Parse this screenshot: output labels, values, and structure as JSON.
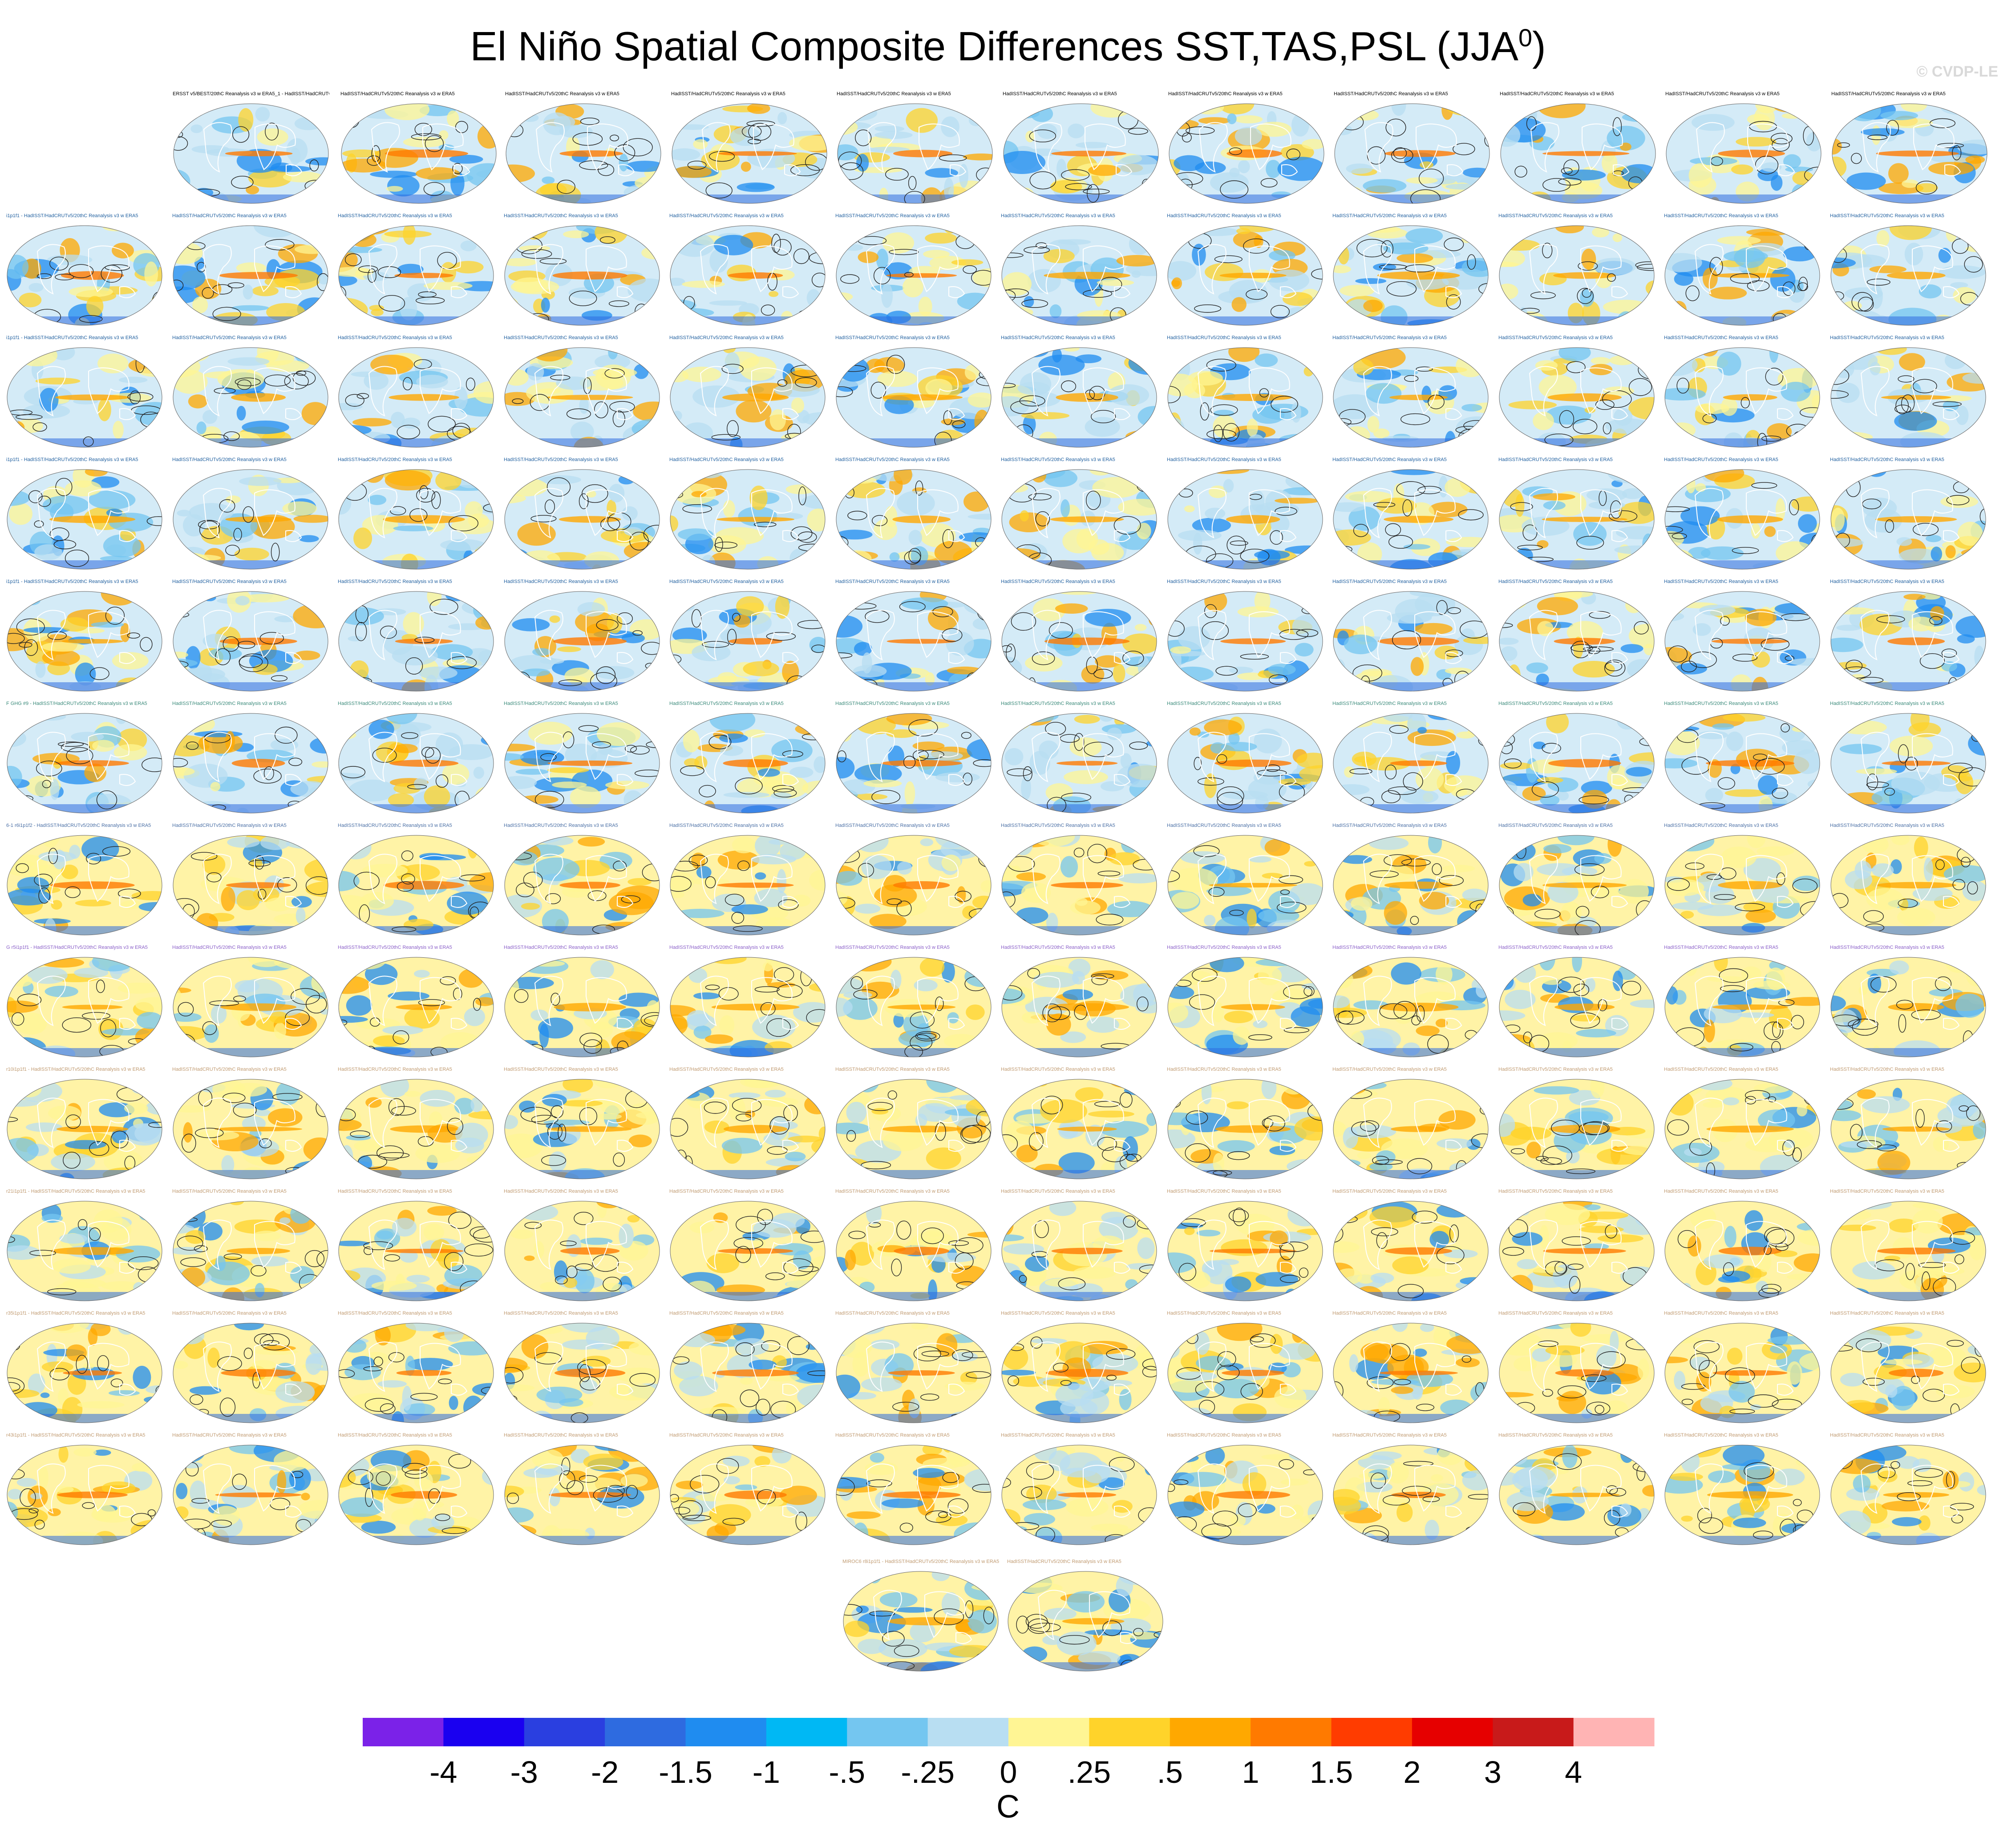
{
  "title": {
    "main": "El Niño Spatial Composite Differences SST,TAS,PSL (JJA",
    "superscript": "0",
    "close": ")"
  },
  "watermark": "© CVDP-LE",
  "chart_data": {
    "type": "heatmap",
    "description_variables": [
      "SST",
      "TAS",
      "PSL"
    ],
    "season": "JJA0",
    "panel_count": 145,
    "panels_per_row": 12,
    "first_panel_label_lines": [
      "ERSST v5/BEST/20thC Reanalysis v3 w ERA5_1 -",
      "HadISST/HadCRUTv5/20thC Reanalysis v3 w ERA5"
    ],
    "panel_label_row_prefixes": [
      "",
      "i1p1f1",
      "i1p1f1",
      "i1p1f1",
      "i1p1f1",
      "F GHG #9",
      "6-1 r6i1p1f2",
      "G r5i1p1f1",
      "r10i1p1f1",
      "r21i1p1f1",
      "r35i1p1f1",
      "r43i1p1f1",
      "MIROC6 r8i1p1f1"
    ],
    "panel_label_text": "HadISST/HadCRUTv5/20thC Reanalysis v3 w ERA5",
    "panel_label_colors": [
      "#000000",
      "#1f5f9f",
      "#1f5f9f",
      "#1f5f9f",
      "#1f5f9f",
      "#3a8a7a",
      "#4a6fa5",
      "#8a5fc8",
      "#c09a70",
      "#c09a70",
      "#c09a70",
      "#c09a70",
      "#c09a70"
    ],
    "colorbar": {
      "unit": "C",
      "tick_labels": [
        "-4",
        "-3",
        "-2",
        "-1.5",
        "-1",
        "-.5",
        "-.25",
        "0",
        ".25",
        ".5",
        "1",
        "1.5",
        "2",
        "3",
        "4"
      ],
      "colors": [
        "#7b22e8",
        "#1a00f0",
        "#2a3fe0",
        "#2e6be0",
        "#1f8cf0",
        "#00b8f4",
        "#74c6f0",
        "#b8def2",
        "#fff594",
        "#ffd32a",
        "#ffa800",
        "#ff7a00",
        "#ff3c00",
        "#e60000",
        "#c81a1a",
        "#ffb4b4"
      ]
    }
  }
}
